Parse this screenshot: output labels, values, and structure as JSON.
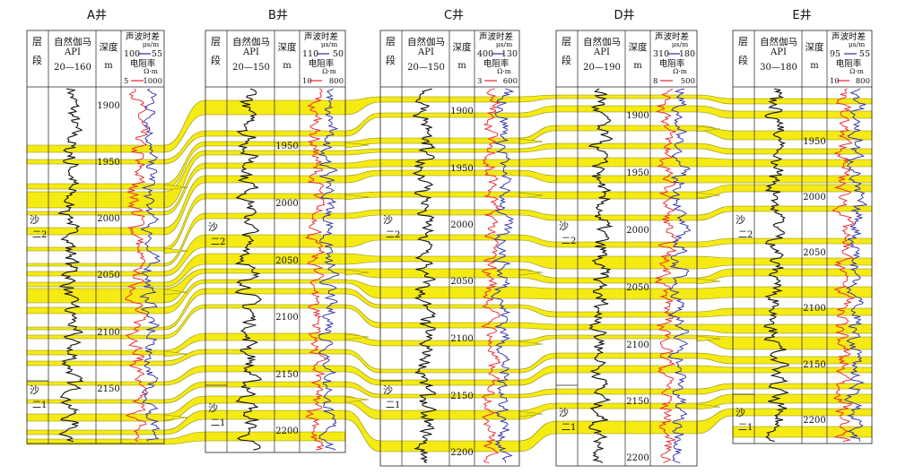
{
  "colors": {
    "sand": "#f5ea12",
    "sand_edge": "#8a8a1a",
    "gamma_curve": "#111111",
    "resistivity_curve": "#e8202a",
    "sonic_curve": "#2a2aa8"
  },
  "header_labels": {
    "layer": [
      "层",
      "段"
    ],
    "gamma": "自然伽马",
    "gamma_unit": "API",
    "depth": "深度",
    "depth_unit": "m",
    "sonic": "声波时差",
    "sonic_unit": "μs/m",
    "resistivity": "电阻率",
    "resistivity_unit": "Ω·m"
  },
  "wells": [
    {
      "name": "A井",
      "gamma_range": "20—160",
      "sonic_range": [
        "100",
        "55"
      ],
      "res_range": [
        "5",
        "1000"
      ],
      "depth_ticks": [
        "1900",
        "1950",
        "2000",
        "2050",
        "2100",
        "2150"
      ],
      "layers": [
        "沙\n二2",
        "沙\n二1"
      ]
    },
    {
      "name": "B井",
      "gamma_range": "20—150",
      "sonic_range": [
        "110",
        "50"
      ],
      "res_range": [
        "10",
        "800"
      ],
      "depth_ticks": [
        "1950",
        "2000",
        "2050",
        "2100",
        "2150",
        "2200"
      ],
      "layers": [
        "沙\n二2",
        "沙\n二1"
      ]
    },
    {
      "name": "C井",
      "gamma_range": "20—150",
      "sonic_range": [
        "400",
        "130"
      ],
      "res_range": [
        "3",
        "600"
      ],
      "depth_ticks": [
        "1900",
        "1950",
        "2000",
        "2050",
        "2100",
        "2150",
        "2200"
      ],
      "layers": [
        "沙\n二2",
        "沙\n二1"
      ]
    },
    {
      "name": "D井",
      "gamma_range": "20—190",
      "sonic_range": [
        "310",
        "180"
      ],
      "res_range": [
        "8",
        "500"
      ],
      "depth_ticks": [
        "1900",
        "1950",
        "2000",
        "2050",
        "2100",
        "2150",
        "2200"
      ],
      "layers": [
        "沙\n二2",
        "沙\n二1"
      ]
    },
    {
      "name": "E井",
      "gamma_range": "30—180",
      "sonic_range": [
        "95",
        "55"
      ],
      "res_range": [
        "10",
        "800"
      ],
      "depth_ticks": [
        "1950",
        "2000",
        "2050",
        "2100",
        "2150",
        "2200"
      ],
      "layers": [
        "沙\n二2",
        "沙\n二1"
      ]
    }
  ]
}
